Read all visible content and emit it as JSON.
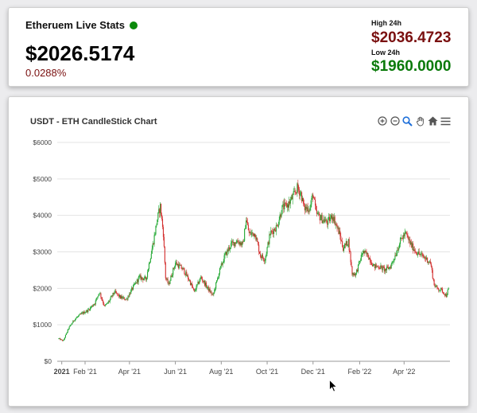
{
  "stats": {
    "title": "Etheruem Live Stats",
    "live_color": "#0b8a0b",
    "price": "$2026.5174",
    "change": "0.0288%",
    "high_label": "High 24h",
    "high_value": "$2036.4723",
    "low_label": "Low 24h",
    "low_value": "$1960.0000"
  },
  "toolbar": {
    "icons": [
      "zoom-in-icon",
      "zoom-out-icon",
      "zoom-selection-icon",
      "pan-hand-icon",
      "home-reset-icon",
      "menu-icon"
    ]
  },
  "chart_data": {
    "type": "candlestick",
    "title": "USDT - ETH CandleStick Chart",
    "xlabel": "",
    "ylabel": "",
    "ylim": [
      0,
      6000
    ],
    "y_ticks": [
      "$0",
      "$1000",
      "$2000",
      "$3000",
      "$4000",
      "$5000",
      "$6000"
    ],
    "x_range": [
      "2020-12-26",
      "2022-06-01"
    ],
    "x_ticks": [
      {
        "date": "2021-01-01",
        "label": "2021",
        "bold": true
      },
      {
        "date": "2021-02-01",
        "label": "Feb '21"
      },
      {
        "date": "2021-04-01",
        "label": "Apr '21"
      },
      {
        "date": "2021-06-01",
        "label": "Jun '21"
      },
      {
        "date": "2021-08-01",
        "label": "Aug '21"
      },
      {
        "date": "2021-10-01",
        "label": "Oct '21"
      },
      {
        "date": "2021-12-01",
        "label": "Dec '21"
      },
      {
        "date": "2022-02-01",
        "label": "Feb '22"
      },
      {
        "date": "2022-04-01",
        "label": "Apr '22"
      }
    ],
    "up_color": "#22a833",
    "down_color": "#d32f2f",
    "grid": true,
    "close_anchors": [
      [
        "2020-12-28",
        620
      ],
      [
        "2021-01-03",
        560
      ],
      [
        "2021-01-10",
        900
      ],
      [
        "2021-01-18",
        1150
      ],
      [
        "2021-01-27",
        1300
      ],
      [
        "2021-02-05",
        1400
      ],
      [
        "2021-02-14",
        1600
      ],
      [
        "2021-02-20",
        1900
      ],
      [
        "2021-02-27",
        1500
      ],
      [
        "2021-03-05",
        1650
      ],
      [
        "2021-03-12",
        1900
      ],
      [
        "2021-03-20",
        1750
      ],
      [
        "2021-03-28",
        1700
      ],
      [
        "2021-04-05",
        2000
      ],
      [
        "2021-04-14",
        2300
      ],
      [
        "2021-04-23",
        2250
      ],
      [
        "2021-05-03",
        3300
      ],
      [
        "2021-05-08",
        3900
      ],
      [
        "2021-05-12",
        4250
      ],
      [
        "2021-05-16",
        3500
      ],
      [
        "2021-05-19",
        2300
      ],
      [
        "2021-05-23",
        2100
      ],
      [
        "2021-06-01",
        2700
      ],
      [
        "2021-06-12",
        2500
      ],
      [
        "2021-06-20",
        2200
      ],
      [
        "2021-06-26",
        1900
      ],
      [
        "2021-07-05",
        2300
      ],
      [
        "2021-07-14",
        2000
      ],
      [
        "2021-07-21",
        1800
      ],
      [
        "2021-07-30",
        2500
      ],
      [
        "2021-08-06",
        2900
      ],
      [
        "2021-08-14",
        3200
      ],
      [
        "2021-08-22",
        3300
      ],
      [
        "2021-08-30",
        3200
      ],
      [
        "2021-09-03",
        3900
      ],
      [
        "2021-09-07",
        3500
      ],
      [
        "2021-09-15",
        3500
      ],
      [
        "2021-09-22",
        2900
      ],
      [
        "2021-09-28",
        2800
      ],
      [
        "2021-10-05",
        3500
      ],
      [
        "2021-10-14",
        3700
      ],
      [
        "2021-10-21",
        4200
      ],
      [
        "2021-10-29",
        4300
      ],
      [
        "2021-11-04",
        4500
      ],
      [
        "2021-11-10",
        4750
      ],
      [
        "2021-11-15",
        4600
      ],
      [
        "2021-11-19",
        4200
      ],
      [
        "2021-11-27",
        4200
      ],
      [
        "2021-12-01",
        4600
      ],
      [
        "2021-12-05",
        4050
      ],
      [
        "2021-12-13",
        3900
      ],
      [
        "2021-12-20",
        3800
      ],
      [
        "2021-12-27",
        4000
      ],
      [
        "2022-01-05",
        3500
      ],
      [
        "2022-01-10",
        3100
      ],
      [
        "2022-01-17",
        3300
      ],
      [
        "2022-01-22",
        2400
      ],
      [
        "2022-01-27",
        2400
      ],
      [
        "2022-02-05",
        3000
      ],
      [
        "2022-02-12",
        2900
      ],
      [
        "2022-02-20",
        2600
      ],
      [
        "2022-02-27",
        2600
      ],
      [
        "2022-03-07",
        2500
      ],
      [
        "2022-03-14",
        2600
      ],
      [
        "2022-03-21",
        2950
      ],
      [
        "2022-03-28",
        3350
      ],
      [
        "2022-04-03",
        3500
      ],
      [
        "2022-04-10",
        3200
      ],
      [
        "2022-04-17",
        3000
      ],
      [
        "2022-04-24",
        2900
      ],
      [
        "2022-05-01",
        2800
      ],
      [
        "2022-05-06",
        2700
      ],
      [
        "2022-05-11",
        2100
      ],
      [
        "2022-05-15",
        2000
      ],
      [
        "2022-05-21",
        1950
      ],
      [
        "2022-05-27",
        1800
      ],
      [
        "2022-05-30",
        1980
      ]
    ]
  }
}
